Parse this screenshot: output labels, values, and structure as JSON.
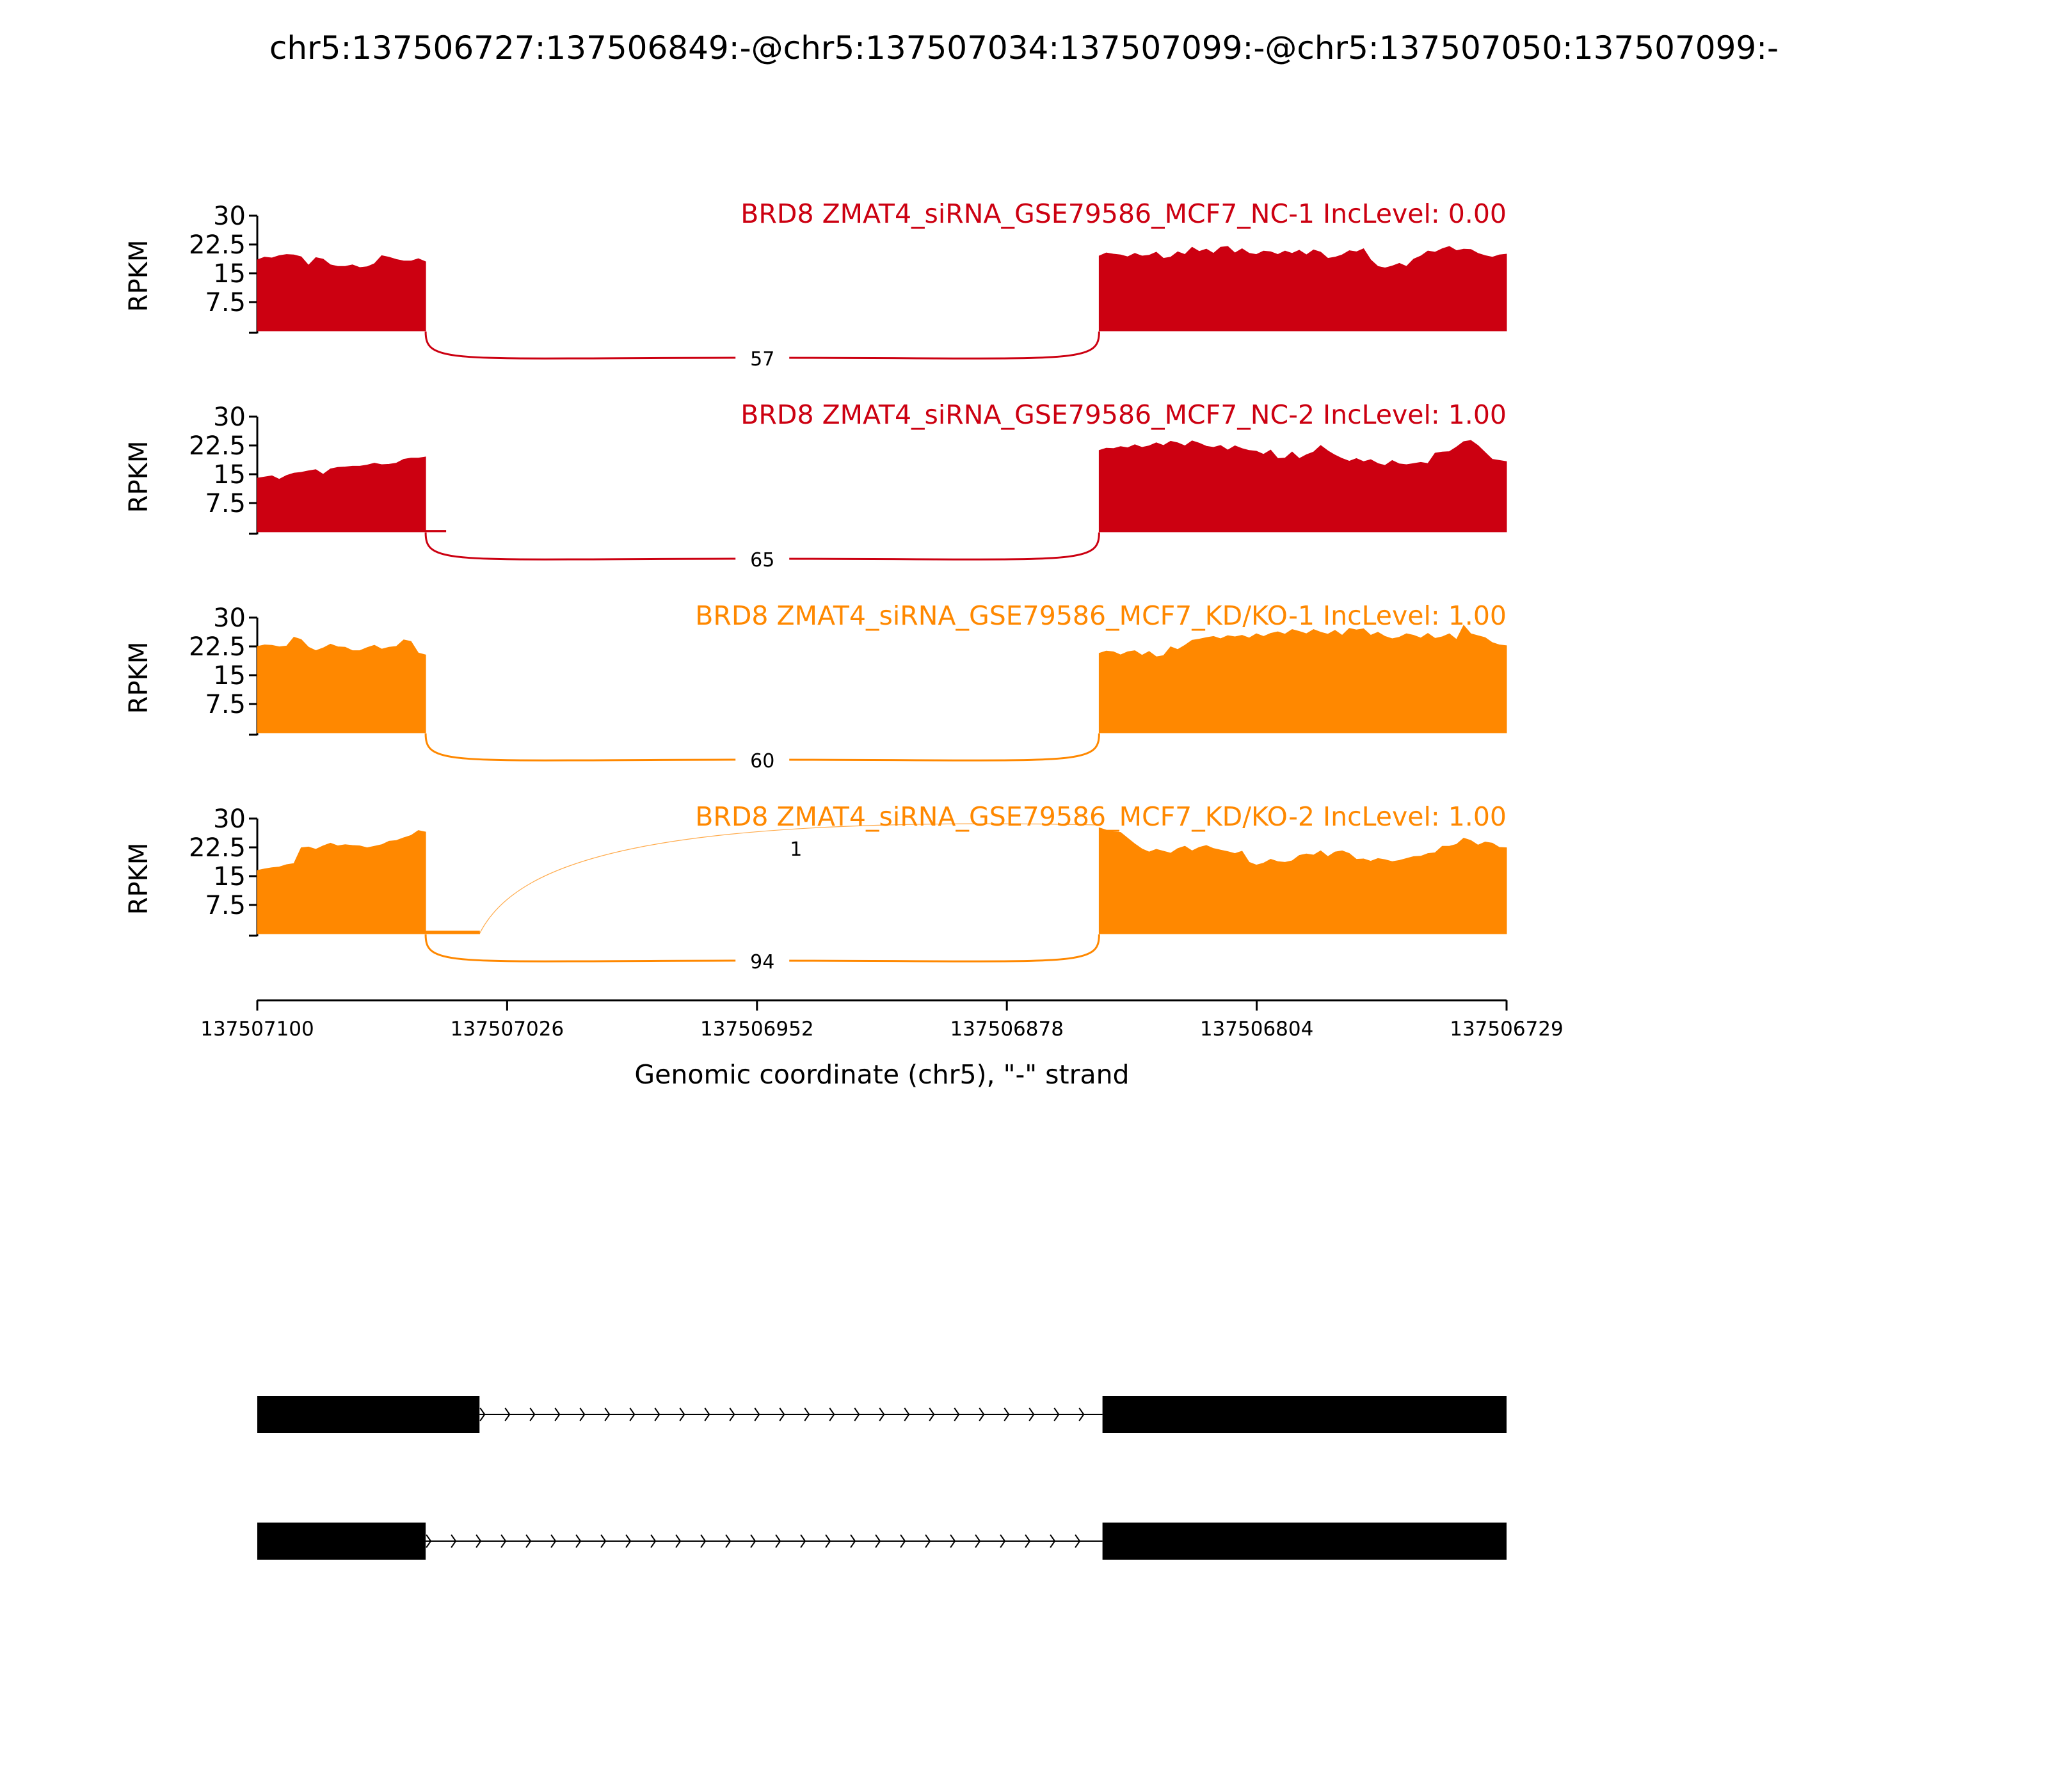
{
  "title": "chr5:137506727:137506849:-@chr5:137507034:137507099:-@chr5:137507050:137507099:-",
  "colors": {
    "nc": "#cc0011",
    "kd": "#ff8800",
    "text": "#000000",
    "gene": "#000000"
  },
  "chart_data": {
    "type": "area",
    "x_axis": {
      "label": "Genomic coordinate (chr5), \"-\" strand",
      "reversed": true,
      "range": [
        137507100,
        137506729
      ],
      "ticks": [
        "137507100",
        "137507026",
        "137506952",
        "137506878",
        "137506804",
        "137506729"
      ]
    },
    "y_axis": {
      "label": "RPKM",
      "range": [
        0,
        30
      ],
      "ticks": [
        "7.5",
        "15",
        "22.5",
        "30"
      ]
    },
    "tracks": [
      {
        "name": "BRD8 ZMAT4_siRNA_GSE79586_MCF7_NC-1 IncLevel: 0.00",
        "group": "nc",
        "exon_left": {
          "start": 137507100,
          "end": 137507050,
          "profile": [
            18.5,
            19.2,
            19.0,
            19.6,
            19.9,
            19.8,
            19.3,
            17.1,
            19.1,
            18.7,
            17.2,
            16.8,
            16.8,
            17.2,
            16.5,
            16.7,
            17.5,
            19.6,
            19.2,
            18.6,
            18.2,
            18.2,
            18.8,
            18.0
          ]
        },
        "exon_right": {
          "start": 137506850,
          "end": 137506729,
          "profile": [
            19.5,
            20.3,
            20.0,
            19.8,
            19.3,
            20.2,
            19.5,
            19.7,
            20.5,
            18.9,
            19.2,
            20.6,
            19.9,
            21.8,
            20.7,
            21.3,
            20.2,
            21.8,
            22.0,
            20.3,
            21.4,
            20.2,
            19.9,
            20.8,
            20.6,
            19.9,
            20.8,
            20.2,
            21.0,
            19.8,
            21.1,
            20.5,
            18.9,
            19.2,
            19.8,
            20.9,
            20.6,
            21.4,
            18.5,
            16.8,
            16.4,
            16.9,
            17.6,
            16.8,
            18.7,
            19.5,
            20.8,
            20.5,
            21.4,
            22.0,
            20.9,
            21.3,
            21.2,
            20.2,
            19.6,
            19.2,
            19.8,
            20.0
          ]
        },
        "junctions": [
          {
            "count": "57",
            "from": 137507050,
            "to": 137506850,
            "side": "below"
          }
        ]
      },
      {
        "name": "BRD8 ZMAT4_siRNA_GSE79586_MCF7_NC-2 IncLevel: 1.00",
        "group": "nc",
        "exon_left": {
          "start": 137507100,
          "end": 137507050,
          "profile": [
            14.0,
            14.3,
            14.6,
            13.7,
            14.7,
            15.3,
            15.5,
            15.9,
            16.2,
            15.0,
            16.4,
            16.8,
            16.9,
            17.1,
            17.1,
            17.4,
            17.9,
            17.5,
            17.6,
            17.9,
            18.9,
            19.2,
            19.2,
            19.5
          ]
        },
        "exon_lead": {
          "start": 137507050,
          "end": 137507044,
          "profile": [
            0.4,
            0.4
          ]
        },
        "exon_right": {
          "start": 137506850,
          "end": 137506729,
          "profile": [
            21.2,
            21.8,
            21.7,
            22.2,
            21.9,
            22.7,
            22.0,
            22.4,
            23.2,
            22.5,
            23.6,
            23.2,
            22.4,
            23.7,
            23.1,
            22.3,
            22.0,
            22.5,
            21.3,
            22.4,
            21.7,
            21.2,
            21.0,
            20.2,
            21.3,
            19.1,
            19.2,
            20.8,
            19.1,
            20.1,
            20.8,
            22.5,
            21.1,
            20.0,
            19.1,
            18.4,
            19.1,
            18.3,
            18.8,
            17.8,
            17.3,
            18.6,
            17.7,
            17.5,
            17.8,
            18.1,
            17.8,
            20.5,
            20.8,
            20.9,
            22.1,
            23.5,
            23.8,
            22.5,
            20.7,
            18.9,
            18.6,
            18.3
          ]
        },
        "junctions": [
          {
            "count": "65",
            "from": 137507050,
            "to": 137506850,
            "side": "below"
          }
        ]
      },
      {
        "name": "BRD8 ZMAT4_siRNA_GSE79586_MCF7_KD/KO-1 IncLevel: 1.00",
        "group": "kd",
        "exon_left": {
          "start": 137507100,
          "end": 137507050,
          "profile": [
            22.5,
            22.9,
            22.8,
            22.4,
            22.6,
            24.9,
            24.3,
            22.3,
            21.4,
            22.1,
            23.1,
            22.4,
            22.3,
            21.4,
            21.4,
            22.2,
            22.8,
            21.8,
            22.3,
            22.5,
            24.2,
            23.8,
            20.8,
            20.3
          ]
        },
        "exon_right": {
          "start": 137506850,
          "end": 137506729,
          "profile": [
            20.7,
            21.3,
            21.1,
            20.3,
            21.1,
            21.4,
            20.2,
            21.2,
            19.8,
            20.1,
            22.4,
            21.7,
            22.8,
            24.1,
            24.4,
            24.8,
            25.1,
            24.5,
            25.3,
            25.0,
            25.4,
            24.7,
            25.8,
            25.1,
            25.9,
            26.3,
            25.7,
            26.9,
            26.4,
            25.8,
            26.9,
            26.2,
            25.7,
            26.7,
            25.4,
            27.2,
            26.8,
            27.1,
            25.4,
            26.2,
            25.1,
            24.5,
            24.9,
            25.8,
            25.4,
            24.7,
            25.9,
            24.6,
            25.0,
            25.8,
            24.3,
            28.0,
            25.8,
            25.3,
            24.8,
            23.5,
            22.9,
            22.7
          ]
        },
        "junctions": [
          {
            "count": "60",
            "from": 137507050,
            "to": 137506850,
            "side": "below"
          }
        ]
      },
      {
        "name": "BRD8 ZMAT4_siRNA_GSE79586_MCF7_KD/KO-2 IncLevel: 1.00",
        "group": "kd",
        "exon_left": {
          "start": 137507100,
          "end": 137507050,
          "profile": [
            16.5,
            16.9,
            17.2,
            17.4,
            18.0,
            18.3,
            22.4,
            22.6,
            22.0,
            22.9,
            23.6,
            22.9,
            23.2,
            23.0,
            22.9,
            22.4,
            22.8,
            23.2,
            24.1,
            24.3,
            25.0,
            25.6,
            26.9,
            26.5
          ]
        },
        "exon_lead": {
          "start": 137507050,
          "end": 137507034,
          "profile": [
            0.7,
            0.7,
            0.7
          ]
        },
        "exon_right": {
          "start": 137506850,
          "end": 137506729,
          "profile": [
            27.6,
            27.0,
            26.5,
            26.4,
            24.9,
            23.4,
            22.1,
            21.3,
            22.0,
            21.5,
            21.0,
            22.2,
            22.8,
            21.6,
            22.5,
            23.0,
            22.2,
            21.8,
            21.4,
            20.9,
            21.5,
            18.6,
            17.9,
            18.4,
            19.4,
            18.8,
            18.6,
            19.0,
            20.4,
            20.8,
            20.5,
            21.6,
            20.1,
            21.3,
            21.6,
            20.9,
            19.4,
            19.5,
            18.9,
            19.6,
            19.3,
            18.8,
            19.1,
            19.6,
            20.1,
            20.2,
            20.9,
            21.1,
            22.8,
            22.8,
            23.3,
            24.9,
            24.3,
            23.1,
            23.9,
            23.6,
            22.5,
            22.4
          ]
        },
        "junctions": [
          {
            "count": "1",
            "from": 137507034,
            "to": 137506850,
            "side": "above"
          },
          {
            "count": "94",
            "from": 137507050,
            "to": 137506850,
            "side": "below"
          }
        ]
      }
    ]
  },
  "isoforms": [
    {
      "exons": [
        [
          137507100,
          137507034
        ],
        [
          137506849,
          137506729
        ]
      ]
    },
    {
      "exons": [
        [
          137507100,
          137507050
        ],
        [
          137506849,
          137506729
        ]
      ]
    }
  ]
}
